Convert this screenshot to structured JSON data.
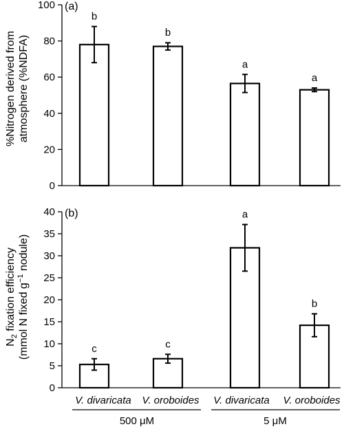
{
  "chart_data": [
    {
      "type": "bar",
      "panel_label": "(a)",
      "ylabel_lines": [
        "%Nitrogen derived from",
        "atmosphere (%NDFA)"
      ],
      "categories": [
        "V. divaricata",
        "V. oroboides",
        "V. divaricata",
        "V. oroboides"
      ],
      "values": [
        78,
        77,
        56.5,
        53
      ],
      "errors": [
        10,
        2,
        5,
        1
      ],
      "significance": [
        "b",
        "b",
        "a",
        "a"
      ],
      "ylim": [
        0,
        100
      ],
      "yticks": [
        0,
        20,
        40,
        60,
        80,
        100
      ]
    },
    {
      "type": "bar",
      "panel_label": "(b)",
      "ylabel_lines": [
        "N2 fixation efficiency",
        "(mmol N fixed g−1 nodule)"
      ],
      "categories": [
        "V. divaricata",
        "V. oroboides",
        "V. divaricata",
        "V. oroboides"
      ],
      "values": [
        5.3,
        6.6,
        31.8,
        14.2
      ],
      "errors": [
        1.3,
        1.0,
        5.3,
        2.6
      ],
      "significance": [
        "c",
        "c",
        "a",
        "b"
      ],
      "ylim": [
        0,
        40
      ],
      "yticks": [
        0,
        5,
        10,
        15,
        20,
        25,
        30,
        35,
        40
      ]
    }
  ],
  "x_categories": [
    "V. divaricata",
    "V. oroboides",
    "V. divaricata",
    "V. oroboides"
  ],
  "groups": [
    "500 μM",
    "5 μM"
  ]
}
